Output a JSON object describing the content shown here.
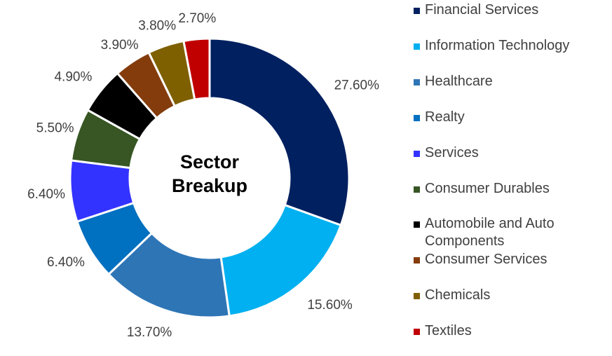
{
  "chart_data": {
    "type": "pie",
    "style": "donut",
    "center_title": [
      "Sector",
      "Breakup"
    ],
    "categories": [
      "Financial Services",
      "Information Technology",
      "Healthcare",
      "Realty",
      "Services",
      "Consumer Durables",
      "Automobile and Auto Components",
      "Consumer Services",
      "Chemicals",
      "Textiles"
    ],
    "values": [
      27.6,
      15.6,
      13.7,
      6.4,
      6.4,
      5.5,
      4.9,
      3.9,
      3.8,
      2.7
    ],
    "labels": [
      "27.60%",
      "15.60%",
      "13.70%",
      "6.40%",
      "6.40%",
      "5.50%",
      "4.90%",
      "3.90%",
      "3.80%",
      "2.70%"
    ],
    "colors": [
      "#002060",
      "#00B0F0",
      "#2E75B6",
      "#0070C0",
      "#3333FF",
      "#375623",
      "#000000",
      "#843C0C",
      "#7F6000",
      "#C00000"
    ],
    "legend_position": "right"
  }
}
